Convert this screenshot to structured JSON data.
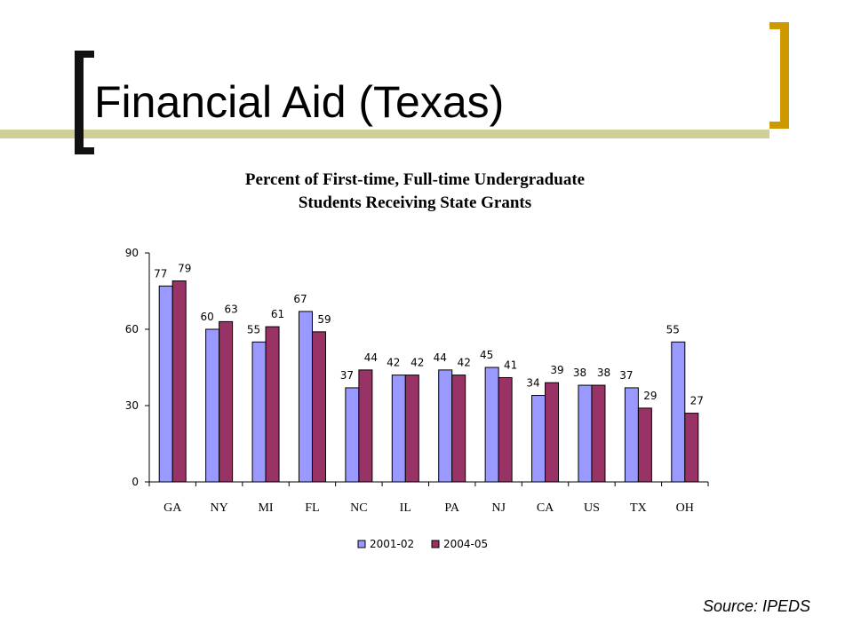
{
  "slide": {
    "title": "Financial Aid (Texas)",
    "source": "Source: IPEDS"
  },
  "colors": {
    "bracket_dark": "#111111",
    "bracket_gold": "#CC9900",
    "title_bar": "#CFCF99"
  },
  "chart_data": {
    "type": "bar",
    "title": [
      "Percent of First-time, Full-time Undergraduate",
      "Students Receiving State Grants"
    ],
    "categories": [
      "GA",
      "NY",
      "MI",
      "FL",
      "NC",
      "IL",
      "PA",
      "NJ",
      "CA",
      "US",
      "TX",
      "OH"
    ],
    "series": [
      {
        "name": "2001-02",
        "color": "#9999FF",
        "values": [
          77,
          60,
          55,
          67,
          37,
          42,
          44,
          45,
          34,
          38,
          37,
          55
        ]
      },
      {
        "name": "2004-05",
        "color": "#993366",
        "values": [
          79,
          63,
          61,
          59,
          44,
          42,
          42,
          41,
          39,
          38,
          29,
          27
        ]
      }
    ],
    "ylim": [
      0,
      90
    ],
    "yticks": [
      0,
      30,
      60,
      90
    ],
    "xlabel": "",
    "ylabel": "",
    "grid": false,
    "legend": "bottom"
  }
}
